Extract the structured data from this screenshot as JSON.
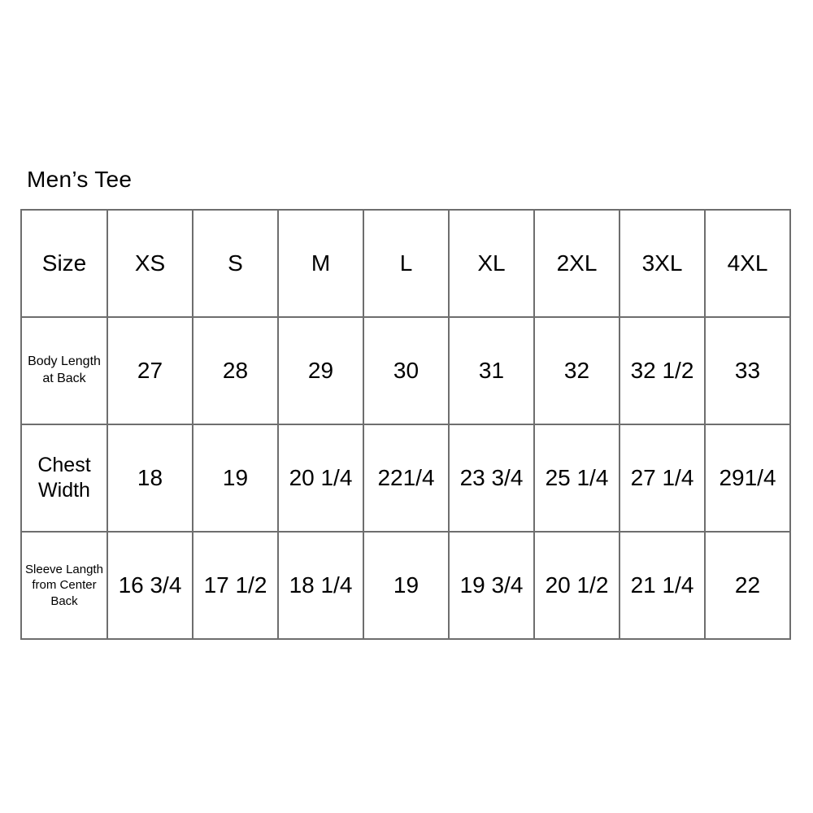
{
  "colors": {
    "background": "#ffffff",
    "border": "#6e6e6e",
    "text": "#000000"
  },
  "chart_data": {
    "type": "table",
    "title": "Men’s Tee",
    "columns": [
      "Size",
      "XS",
      "S",
      "M",
      "L",
      "XL",
      "2XL",
      "3XL",
      "4XL"
    ],
    "rows": [
      {
        "label": "Body Length at Back",
        "values": [
          "27",
          "28",
          "29",
          "30",
          "31",
          "32",
          "32 1/2",
          "33"
        ]
      },
      {
        "label": "Chest Width",
        "values": [
          "18",
          "19",
          "20 1/4",
          "221/4",
          "23 3/4",
          "25 1/4",
          "27 1/4",
          "291/4"
        ]
      },
      {
        "label": "Sleeve Langth from Center Back",
        "values": [
          "16 3/4",
          "17 1/2",
          "18 1/4",
          "19",
          "19 3/4",
          "20 1/2",
          "21 1/4",
          "22"
        ]
      }
    ]
  }
}
